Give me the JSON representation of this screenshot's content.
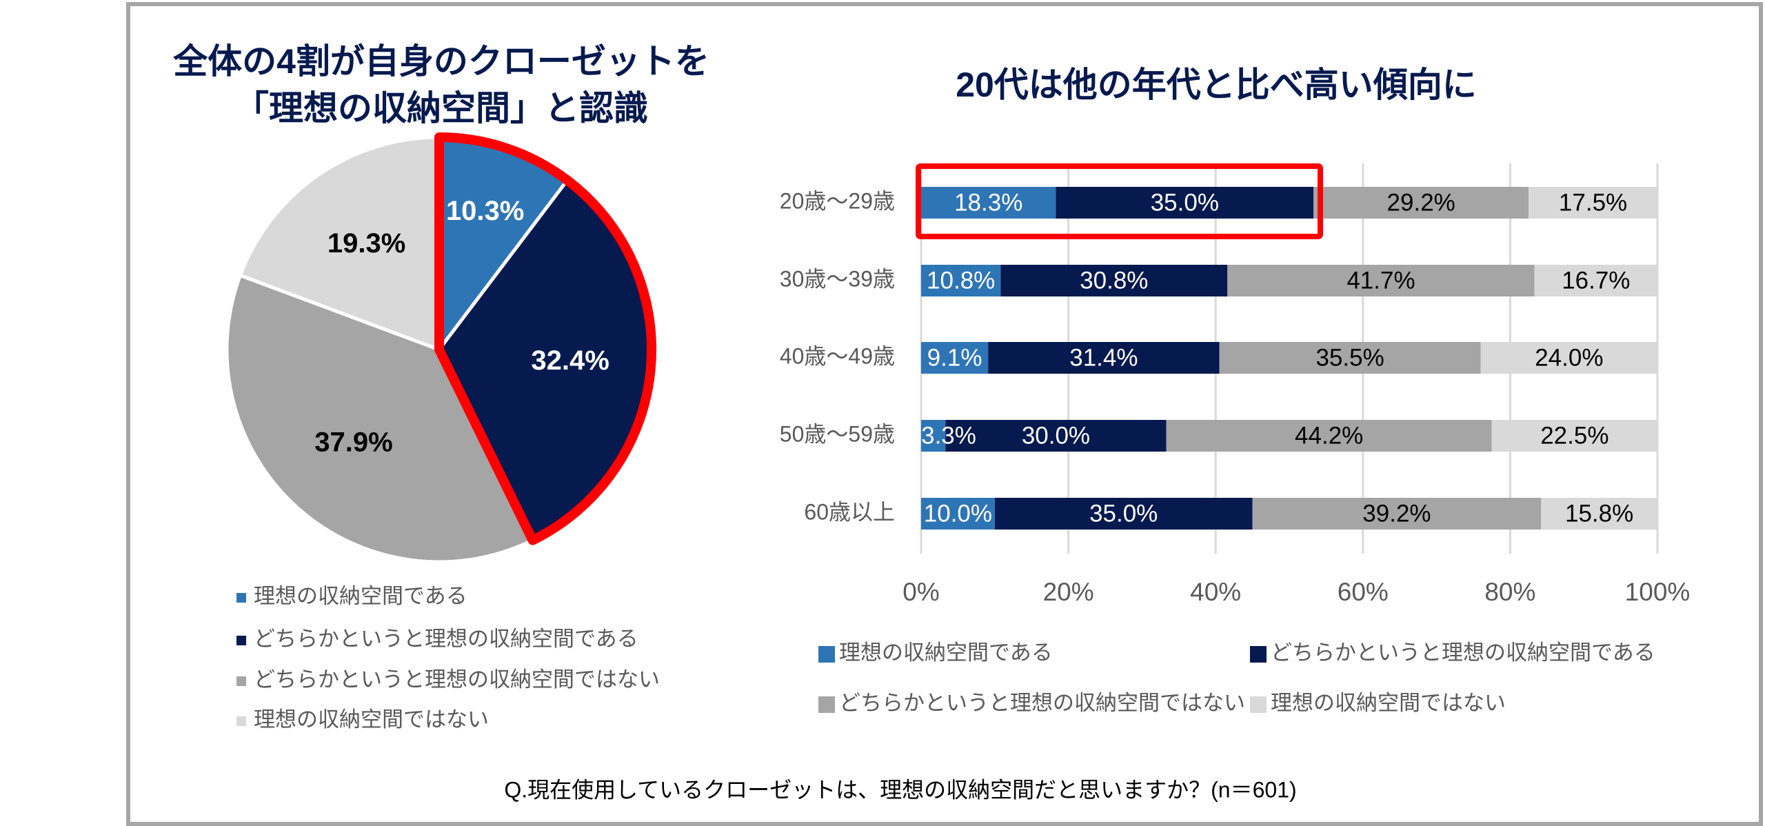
{
  "colors": {
    "ideal": "#2e75b6",
    "somewhat_ideal": "#061a4f",
    "somewhat_not": "#a5a5a5",
    "not_ideal": "#d9d9d9",
    "highlight": "#ff0000",
    "title": "#061a4f"
  },
  "chart_data": [
    {
      "type": "pie",
      "title": [
        "全体の4割が自身のクローゼットを",
        "「理想の収納空間」と認識"
      ],
      "labels": [
        "理想の収納空間である",
        "どちらかというと理想の収納空間である",
        "どちらかというと理想の収納空間ではない",
        "理想の収納空間ではない"
      ],
      "values": [
        10.3,
        32.4,
        37.9,
        19.3
      ],
      "value_labels": [
        "10.3%",
        "32.4%",
        "37.9%",
        "19.3%"
      ],
      "highlighted_slices": [
        0,
        1
      ],
      "legend_position": "bottom"
    },
    {
      "type": "bar",
      "orientation": "horizontal-stacked-100",
      "title": "20代は他の年代と比べ高い傾向に",
      "categories": [
        "20歳〜29歳",
        "30歳〜39歳",
        "40歳〜49歳",
        "50歳〜59歳",
        "60歳以上"
      ],
      "series": [
        {
          "name": "理想の収納空間である",
          "values": [
            18.3,
            10.8,
            9.1,
            3.3,
            10.0
          ],
          "labels": [
            "18.3%",
            "10.8%",
            "9.1%",
            "3.3%",
            "10.0%"
          ]
        },
        {
          "name": "どちらかというと理想の収納空間である",
          "values": [
            35.0,
            30.8,
            31.4,
            30.0,
            35.0
          ],
          "labels": [
            "35.0%",
            "30.8%",
            "31.4%",
            "30.0%",
            "35.0%"
          ]
        },
        {
          "name": "どちらかというと理想の収納空間ではない",
          "values": [
            29.2,
            41.7,
            35.5,
            44.2,
            39.2
          ],
          "labels": [
            "29.2%",
            "41.7%",
            "35.5%",
            "44.2%",
            "39.2%"
          ]
        },
        {
          "name": "理想の収納空間ではない",
          "values": [
            17.5,
            16.7,
            24.0,
            22.5,
            15.8
          ],
          "labels": [
            "17.5%",
            "16.7%",
            "24.0%",
            "22.5%",
            "15.8%"
          ]
        }
      ],
      "xlim": [
        0,
        100
      ],
      "xticks": [
        "0%",
        "20%",
        "40%",
        "60%",
        "80%",
        "100%"
      ],
      "grid": true,
      "highlighted_category": 0,
      "legend_position": "bottom"
    }
  ],
  "footnote": "Q.現在使用しているクローゼットは、理想の収納空間だと思いますか？(n＝601)"
}
